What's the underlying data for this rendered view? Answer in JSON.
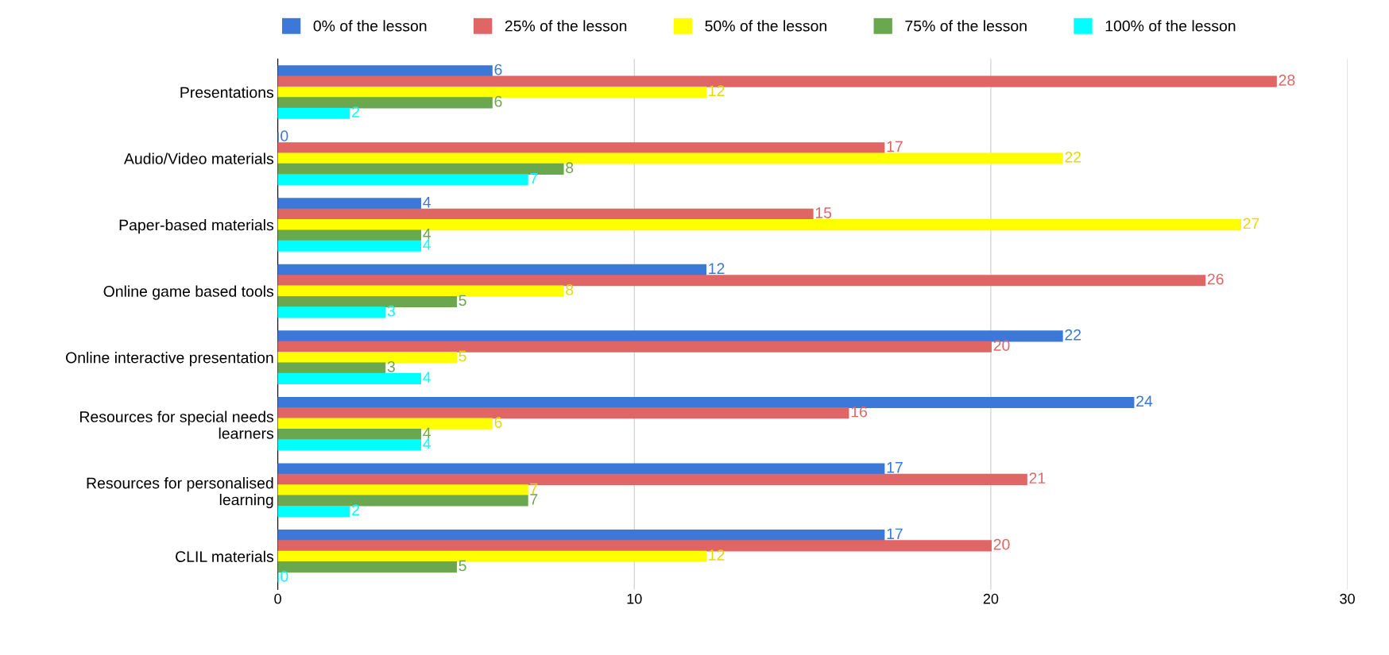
{
  "chart_data": {
    "type": "bar",
    "orientation": "horizontal",
    "categories": [
      "Presentations",
      "Audio/Video materials",
      "Paper-based materials",
      "Online game based tools",
      "Online interactive presentation",
      "Resources for special needs\nlearners",
      "Resources for personalised\nlearning",
      "CLIL materials"
    ],
    "series": [
      {
        "name": "0% of the lesson",
        "color": "#3c78d8",
        "values": [
          6,
          0,
          4,
          12,
          22,
          24,
          17,
          17
        ]
      },
      {
        "name": "25% of the lesson",
        "color": "#e06666",
        "values": [
          28,
          17,
          15,
          26,
          20,
          16,
          21,
          20
        ]
      },
      {
        "name": "50% of the lesson",
        "color": "#ffff00",
        "values": [
          12,
          22,
          27,
          8,
          5,
          6,
          7,
          12
        ]
      },
      {
        "name": "75% of the lesson",
        "color": "#6aa84f",
        "values": [
          6,
          8,
          4,
          5,
          3,
          4,
          7,
          5
        ]
      },
      {
        "name": "100% of the lesson",
        "color": "#00ffff",
        "values": [
          2,
          7,
          4,
          3,
          4,
          4,
          2,
          0
        ]
      }
    ],
    "xlim": [
      0,
      30
    ],
    "xticks": [
      0,
      10,
      20,
      30
    ],
    "grid": "x",
    "legend": "top",
    "data_labels": true
  }
}
